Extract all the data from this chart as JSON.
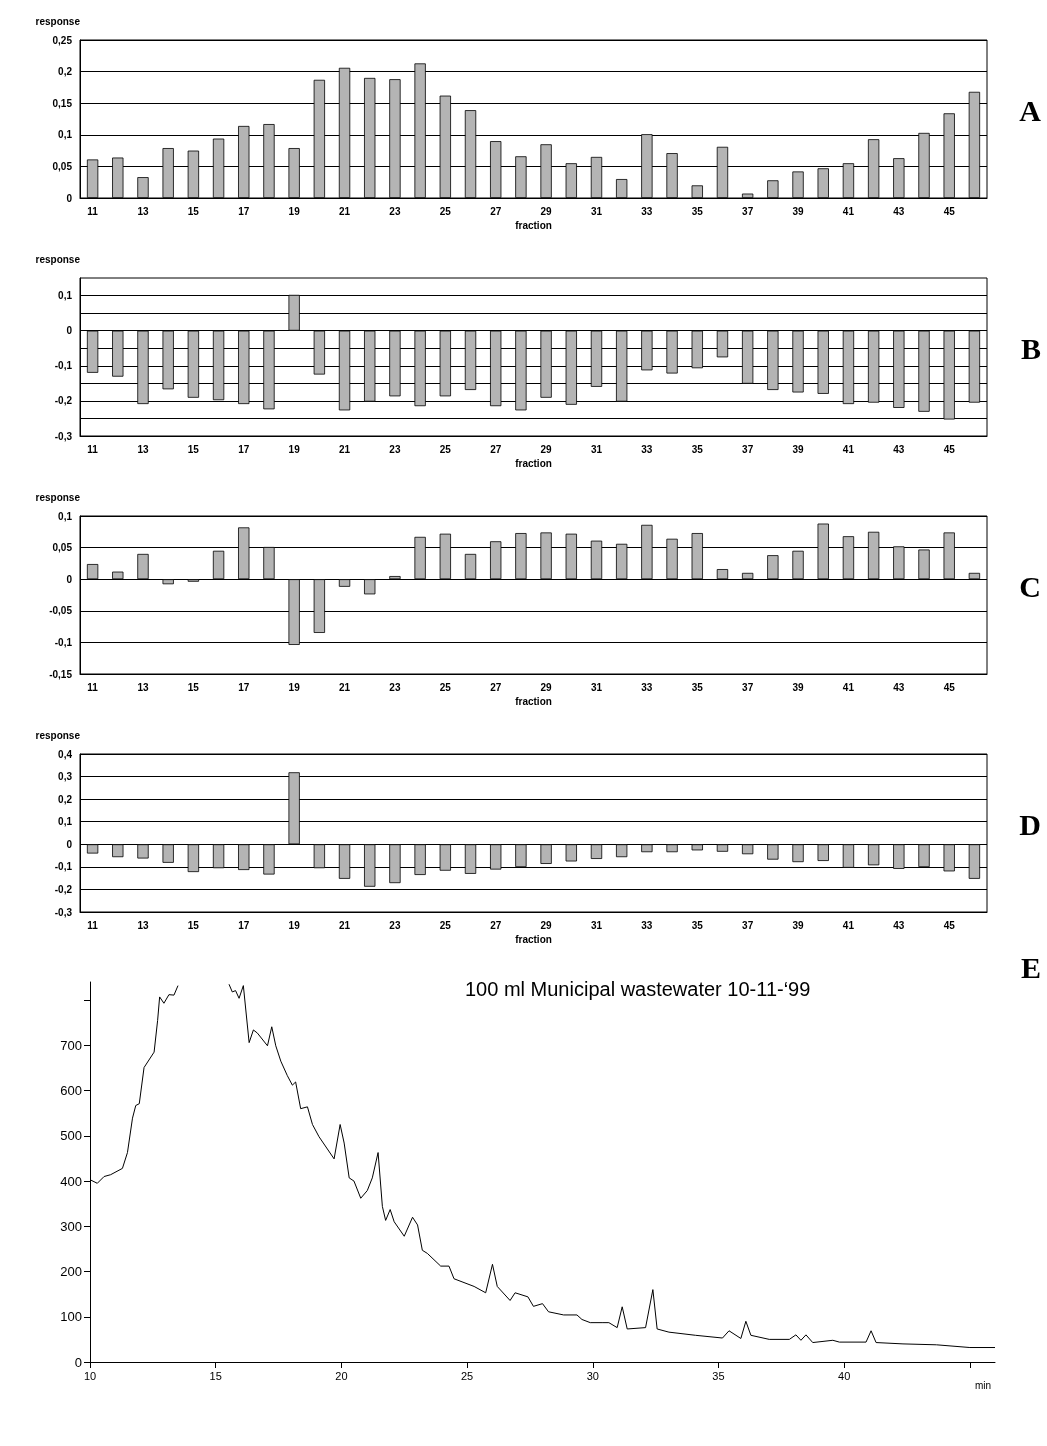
{
  "chart_data": [
    {
      "type": "bar",
      "ylabel": "response",
      "xlabel": "fraction",
      "annotations": [
        "A"
      ],
      "color": "#b4b4b4",
      "grid": "y",
      "categories": [
        "11",
        null,
        "13",
        null,
        "15",
        null,
        "17",
        null,
        "19",
        null,
        "21",
        null,
        "23",
        null,
        "25",
        null,
        "27",
        null,
        "29",
        null,
        "31",
        null,
        "33",
        null,
        "35",
        null,
        "37",
        null,
        "39",
        null,
        "41",
        null,
        "43",
        null,
        "45",
        null
      ],
      "values": [
        0.061,
        0.064,
        0.033,
        0.079,
        0.075,
        0.094,
        0.114,
        0.117,
        0.079,
        0.187,
        0.206,
        0.19,
        0.188,
        0.213,
        0.162,
        0.139,
        0.09,
        0.066,
        0.085,
        0.055,
        0.065,
        0.03,
        0.101,
        0.071,
        0.02,
        0.081,
        0.007,
        0.028,
        0.042,
        0.047,
        0.055,
        0.093,
        0.063,
        0.103,
        0.134,
        0.168
      ],
      "ylim": [
        0,
        0.25
      ],
      "yticks": [
        {
          "value": 0,
          "label": "0"
        },
        {
          "value": 0.05,
          "label": "0,05"
        },
        {
          "value": 0.1,
          "label": "0,1"
        },
        {
          "value": 0.15,
          "label": "0,15"
        },
        {
          "value": 0.2,
          "label": "0,2"
        },
        {
          "value": 0.25,
          "label": "0,25"
        }
      ]
    },
    {
      "type": "bar",
      "ylabel": "response",
      "xlabel": "fraction",
      "annotations": [
        "B"
      ],
      "color": "#b4b4b4",
      "grid": "y",
      "categories": [
        "11",
        null,
        "13",
        null,
        "15",
        null,
        "17",
        null,
        "19",
        null,
        "21",
        null,
        "23",
        null,
        "25",
        null,
        "27",
        null,
        "29",
        null,
        "31",
        null,
        "33",
        null,
        "35",
        null,
        "37",
        null,
        "39",
        null,
        "41",
        null,
        "43",
        null,
        "45",
        null
      ],
      "values": [
        -0.12,
        -0.131,
        -0.209,
        -0.167,
        -0.191,
        -0.198,
        -0.209,
        -0.224,
        0.102,
        -0.125,
        -0.227,
        -0.202,
        -0.187,
        -0.215,
        -0.187,
        -0.169,
        -0.215,
        -0.227,
        -0.191,
        -0.211,
        -0.16,
        -0.202,
        -0.113,
        -0.122,
        -0.107,
        -0.076,
        -0.151,
        -0.169,
        -0.176,
        -0.18,
        -0.209,
        -0.205,
        -0.22,
        -0.231,
        -0.253,
        -0.205
      ],
      "ylim": [
        -0.3,
        0.15
      ],
      "yticks": [
        {
          "value": -0.3,
          "label": "-0,3"
        },
        {
          "value": -0.25,
          "label": null
        },
        {
          "value": -0.2,
          "label": "-0,2"
        },
        {
          "value": -0.15,
          "label": null
        },
        {
          "value": -0.1,
          "label": "-0,1"
        },
        {
          "value": -0.05,
          "label": null
        },
        {
          "value": 0,
          "label": "0"
        },
        {
          "value": 0.05,
          "label": null
        },
        {
          "value": 0.1,
          "label": "0,1"
        }
      ]
    },
    {
      "type": "bar",
      "ylabel": "response",
      "xlabel": "fraction",
      "annotations": [
        "C"
      ],
      "color": "#b4b4b4",
      "grid": "y",
      "categories": [
        "11",
        null,
        "13",
        null,
        "15",
        null,
        "17",
        null,
        "19",
        null,
        "21",
        null,
        "23",
        null,
        "25",
        null,
        "27",
        null,
        "29",
        null,
        "31",
        null,
        "33",
        null,
        "35",
        null,
        "37",
        null,
        "39",
        null,
        "41",
        null,
        "43",
        null,
        "45",
        null
      ],
      "values": [
        0.024,
        0.012,
        0.04,
        -0.008,
        -0.004,
        0.045,
        0.082,
        0.051,
        -0.104,
        -0.085,
        -0.012,
        -0.024,
        0.005,
        0.067,
        0.072,
        0.04,
        0.06,
        0.073,
        0.074,
        0.072,
        0.061,
        0.056,
        0.086,
        0.064,
        0.073,
        0.016,
        0.01,
        0.038,
        0.045,
        0.088,
        0.068,
        0.075,
        0.052,
        0.047,
        0.074,
        0.01
      ],
      "ylim": [
        -0.15,
        0.1
      ],
      "yticks": [
        {
          "value": -0.15,
          "label": "-0,15"
        },
        {
          "value": -0.1,
          "label": "-0,1"
        },
        {
          "value": -0.05,
          "label": "-0,05"
        },
        {
          "value": 0,
          "label": "0"
        },
        {
          "value": 0.05,
          "label": "0,05"
        },
        {
          "value": 0.1,
          "label": "0,1"
        }
      ]
    },
    {
      "type": "bar",
      "ylabel": "response",
      "xlabel": "fraction",
      "annotations": [
        "D"
      ],
      "color": "#b4b4b4",
      "grid": "y",
      "categories": [
        "11",
        null,
        "13",
        null,
        "15",
        null,
        "17",
        null,
        "19",
        null,
        "21",
        null,
        "23",
        null,
        "25",
        null,
        "27",
        null,
        "29",
        null,
        "31",
        null,
        "33",
        null,
        "35",
        null,
        "37",
        null,
        "39",
        null,
        "41",
        null,
        "43",
        null,
        "45",
        null
      ],
      "values": [
        -0.041,
        -0.057,
        -0.063,
        -0.082,
        -0.123,
        -0.106,
        -0.114,
        -0.134,
        0.319,
        -0.106,
        -0.153,
        -0.188,
        -0.172,
        -0.136,
        -0.117,
        -0.131,
        -0.112,
        -0.101,
        -0.087,
        -0.076,
        -0.065,
        -0.057,
        -0.035,
        -0.035,
        -0.027,
        -0.033,
        -0.044,
        -0.068,
        -0.079,
        -0.074,
        -0.104,
        -0.093,
        -0.109,
        -0.101,
        -0.12,
        -0.153
      ],
      "ylim": [
        -0.3,
        0.4
      ],
      "yticks": [
        {
          "value": -0.3,
          "label": "-0,3"
        },
        {
          "value": -0.2,
          "label": "-0,2"
        },
        {
          "value": -0.1,
          "label": "-0,1"
        },
        {
          "value": 0,
          "label": "0"
        },
        {
          "value": 0.1,
          "label": "0,1"
        },
        {
          "value": 0.2,
          "label": "0,2"
        },
        {
          "value": 0.3,
          "label": "0,3"
        },
        {
          "value": 0.4,
          "label": "0,4"
        }
      ]
    },
    {
      "type": "line",
      "title": "100 ml Municipal wastewater 10-11-‘99",
      "xlabel": "min",
      "annotations": [
        "E"
      ],
      "color": "#000000",
      "marker": "none",
      "grid": false,
      "x": [
        10,
        10.29,
        10.56,
        10.82,
        11.29,
        11.49,
        11.69,
        11.82,
        11.96,
        12.15,
        12.55,
        12.69,
        12.77,
        12.94,
        13.14,
        13.34,
        13.5,
        14.5,
        15.53,
        15.66,
        15.79,
        15.93,
        16.1,
        16.33,
        16.5,
        16.66,
        17.06,
        17.23,
        17.39,
        17.59,
        17.85,
        18.05,
        18.18,
        18.38,
        18.65,
        18.85,
        19.11,
        19.71,
        19.95,
        20.11,
        20.31,
        20.5,
        20.77,
        21.03,
        21.23,
        21.46,
        21.63,
        21.76,
        21.94,
        22.1,
        22.5,
        22.83,
        23.03,
        23.22,
        23.42,
        23.95,
        24.28,
        24.48,
        25.28,
        25.74,
        26.01,
        26.2,
        26.71,
        26.91,
        27.42,
        27.64,
        28.0,
        28.24,
        28.84,
        29.37,
        29.57,
        29.9,
        30.37,
        30.64,
        30.97,
        31.17,
        31.37,
        32.1,
        32.39,
        32.56,
        33.03,
        34.09,
        35.16,
        35.42,
        35.89,
        36.09,
        36.29,
        37.02,
        37.82,
        38.08,
        38.28,
        38.48,
        38.75,
        39.55,
        39.81,
        40.87,
        41.07,
        41.27,
        42.34,
        43.67,
        45.0,
        46.0
      ],
      "values": [
        403,
        395,
        410,
        414,
        428,
        463,
        539,
        567,
        571,
        651,
        685,
        755,
        807,
        793,
        812,
        811,
        832,
        null,
        835,
        818,
        821,
        804,
        832,
        706,
        734,
        727,
        699,
        741,
        699,
        665,
        633,
        612,
        619,
        560,
        564,
        525,
        498,
        449,
        525,
        484,
        407,
        400,
        362,
        379,
        407,
        463,
        344,
        313,
        337,
        310,
        278,
        320,
        303,
        247,
        240,
        212,
        212,
        184,
        167,
        153,
        216,
        167,
        136,
        153,
        144,
        123,
        129,
        111,
        104,
        104,
        94,
        87,
        87,
        87,
        76,
        122,
        73,
        76,
        160,
        73,
        66,
        59,
        53,
        69,
        52,
        90,
        59,
        50,
        50,
        60,
        48,
        60,
        43,
        48,
        44,
        44,
        69,
        43,
        40,
        38,
        32,
        32
      ],
      "xlim": [
        10,
        46
      ],
      "xticks": [
        10,
        15,
        20,
        25,
        30,
        35,
        40,
        {
          "value": 45,
          "label": null
        }
      ],
      "ylim": [
        0,
        840
      ],
      "yticks": [
        0,
        100,
        200,
        300,
        400,
        500,
        600,
        700,
        {
          "value": 800,
          "label": null
        }
      ]
    }
  ]
}
